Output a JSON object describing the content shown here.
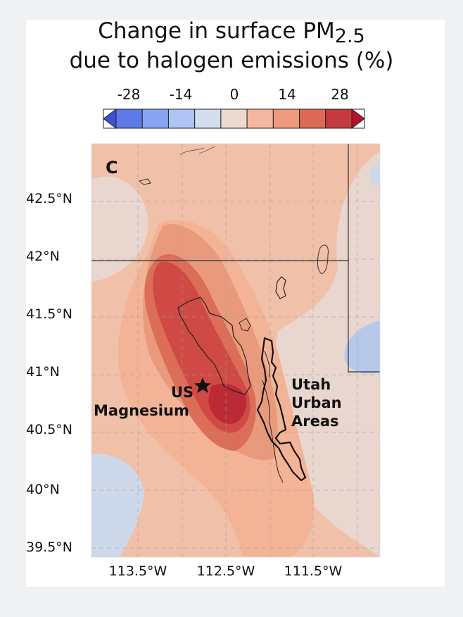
{
  "title": {
    "line1_prefix": "Change in surface PM",
    "line1_sub": "2.5",
    "line2": "due to halogen emissions (%)"
  },
  "colorbar": {
    "tick_labels": [
      "-28",
      "-14",
      "0",
      "14",
      "28"
    ],
    "colors": [
      "#3d4fd6",
      "#5d7ae8",
      "#86a4f2",
      "#adc4f4",
      "#d2ddee",
      "#eed9cf",
      "#f5b89e",
      "#ef9a7d",
      "#dd6a55",
      "#c53a3f",
      "#b5132b"
    ]
  },
  "map": {
    "panel_label": "C",
    "lat_labels": [
      "42.5°N",
      "42°N",
      "41.5°N",
      "41°N",
      "40.5°N",
      "40°N",
      "39.5°N"
    ],
    "lon_labels": [
      "113.5°W",
      "112.5°W",
      "111.5°W"
    ],
    "annotations": {
      "us_magnesium_1": "US",
      "us_magnesium_2": "Magnesium",
      "utah_1": "Utah",
      "utah_2": "Urban",
      "utah_3": "Areas"
    },
    "fill_colors": {
      "bg": "#f1c0a8",
      "neutral": "#e9d6ce",
      "blue_light": "#cdd8ea",
      "blue_mid": "#b6c9ea",
      "light": "#f3b396",
      "mid": "#ea9a7c",
      "strong": "#dc6d57",
      "darker": "#cf4a44",
      "darkest": "#bb2a35"
    }
  }
}
